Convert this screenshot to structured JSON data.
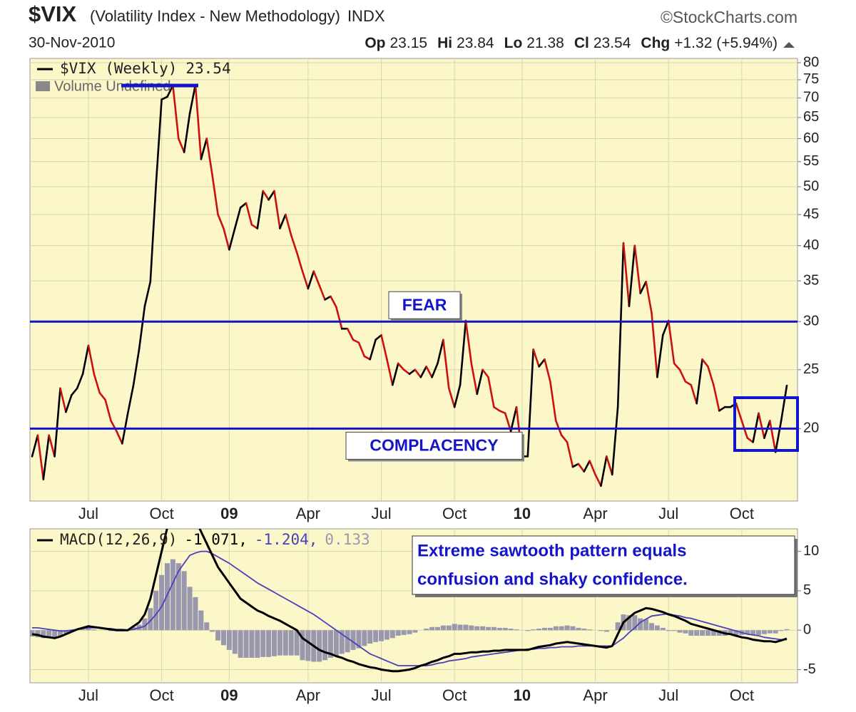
{
  "header": {
    "symbol": "$VIX",
    "name": "(Volatility Index - New Methodology)",
    "exchange": "INDX",
    "source": "©StockCharts.com",
    "date": "30-Nov-2010",
    "quote": [
      {
        "label": "Op",
        "value": "23.15"
      },
      {
        "label": "Hi",
        "value": "23.84"
      },
      {
        "label": "Lo",
        "value": "21.38"
      },
      {
        "label": "Cl",
        "value": "23.54"
      },
      {
        "label": "Chg",
        "value": "+1.32 (+5.94%)"
      }
    ]
  },
  "chart_data": [
    {
      "type": "line",
      "log_scale": true,
      "grid": true,
      "up_color": "#000000",
      "down_color": "#cc1010",
      "level_color": "#1414c8",
      "overlay_text": "Volume Undefined",
      "categories": [
        null,
        null,
        null,
        null,
        null,
        null,
        null,
        null,
        null,
        null,
        "Jul",
        null,
        null,
        null,
        null,
        null,
        null,
        null,
        null,
        null,
        null,
        null,
        null,
        "Oct",
        null,
        null,
        null,
        null,
        null,
        null,
        null,
        null,
        null,
        null,
        null,
        "09",
        null,
        null,
        null,
        null,
        null,
        null,
        null,
        null,
        null,
        null,
        null,
        null,
        null,
        "Apr",
        null,
        null,
        null,
        null,
        null,
        null,
        null,
        null,
        null,
        null,
        null,
        null,
        "Jul",
        null,
        null,
        null,
        null,
        null,
        null,
        null,
        null,
        null,
        null,
        null,
        null,
        "Oct",
        null,
        null,
        null,
        null,
        null,
        null,
        null,
        null,
        null,
        null,
        null,
        "10",
        null,
        null,
        null,
        null,
        null,
        null,
        null,
        null,
        null,
        null,
        null,
        null,
        "Apr",
        null,
        null,
        null,
        null,
        null,
        null,
        null,
        null,
        null,
        null,
        null,
        null,
        "Jul",
        null,
        null,
        null,
        null,
        null,
        null,
        null,
        null,
        null,
        null,
        null,
        null,
        "Oct",
        null,
        null,
        null,
        null,
        null,
        null,
        null,
        null
      ],
      "series": [
        {
          "name": "$VIX (Weekly)",
          "values": [
            18.0,
            19.5,
            16.5,
            19.5,
            18.0,
            23.3,
            21.3,
            22.7,
            23.3,
            24.6,
            27.4,
            24.6,
            22.9,
            22.3,
            20.6,
            19.8,
            18.9,
            21.2,
            23.6,
            27.0,
            31.8,
            34.9,
            50.4,
            69.6,
            70.3,
            73.4,
            60,
            57,
            66,
            73.6,
            55.5,
            60,
            52.2,
            45,
            42.7,
            39.4,
            42.7,
            46.2,
            47,
            43.3,
            42.7,
            49.2,
            47.6,
            49.2,
            42.7,
            45,
            41.6,
            39,
            36.3,
            34,
            36.3,
            34.4,
            32.6,
            33,
            31.7,
            29.2,
            29.2,
            28,
            27.7,
            26.3,
            26,
            28,
            28.5,
            26,
            23.6,
            25.6,
            25,
            24.6,
            25,
            24.3,
            25.3,
            24.3,
            25.6,
            28,
            23.3,
            21.7,
            23.6,
            30.1,
            25.6,
            22.8,
            25,
            24.3,
            21.7,
            21.4,
            21.2,
            19.8,
            21.7,
            18,
            18,
            27,
            25.3,
            26,
            23.9,
            20.6,
            19.5,
            19,
            17.3,
            17.5,
            17,
            17.7,
            16.8,
            16.1,
            18,
            16.8,
            21.7,
            40.4,
            31.8,
            40,
            33.4,
            34.9,
            31,
            24.3,
            28.5,
            30.1,
            25.6,
            25,
            23.9,
            23.6,
            22,
            26,
            25.3,
            23.6,
            21.4,
            21.7,
            21.7,
            22,
            20.6,
            19.3,
            19,
            21.2,
            19.3,
            20.6,
            18.3,
            20.6,
            23.54
          ]
        }
      ],
      "ylim": [
        15.2,
        81.3
      ],
      "yticks": [
        20,
        25,
        30,
        35,
        40,
        45,
        50,
        55,
        60,
        65,
        70,
        75,
        80
      ],
      "levels": [
        {
          "value": 30,
          "label": "FEAR"
        },
        {
          "value": 20,
          "label": "COMPLACENCY"
        }
      ]
    },
    {
      "type": "macd",
      "grid": true,
      "legend_values": [
        "-1.071,",
        "-1.204,",
        "0.133"
      ],
      "annotation": [
        "Extreme sawtooth pattern equals",
        "confusion and shaky confidence."
      ],
      "categories": [
        null,
        null,
        null,
        null,
        null,
        null,
        null,
        null,
        null,
        null,
        "Jul",
        null,
        null,
        null,
        null,
        null,
        null,
        null,
        null,
        null,
        null,
        null,
        null,
        "Oct",
        null,
        null,
        null,
        null,
        null,
        null,
        null,
        null,
        null,
        null,
        null,
        "09",
        null,
        null,
        null,
        null,
        null,
        null,
        null,
        null,
        null,
        null,
        null,
        null,
        null,
        "Apr",
        null,
        null,
        null,
        null,
        null,
        null,
        null,
        null,
        null,
        null,
        null,
        null,
        "Jul",
        null,
        null,
        null,
        null,
        null,
        null,
        null,
        null,
        null,
        null,
        null,
        null,
        "Oct",
        null,
        null,
        null,
        null,
        null,
        null,
        null,
        null,
        null,
        null,
        null,
        "10",
        null,
        null,
        null,
        null,
        null,
        null,
        null,
        null,
        null,
        null,
        null,
        null,
        "Apr",
        null,
        null,
        null,
        null,
        null,
        null,
        null,
        null,
        null,
        null,
        null,
        null,
        "Jul",
        null,
        null,
        null,
        null,
        null,
        null,
        null,
        null,
        null,
        null,
        null,
        null,
        "Oct",
        null,
        null,
        null,
        null,
        null,
        null,
        null,
        null
      ],
      "series": [
        {
          "name": "MACD(12,26,9)",
          "color": "#000000",
          "values": [
            -0.5,
            -0.6,
            -0.8,
            -0.9,
            -1.0,
            -0.8,
            -0.5,
            -0.2,
            0.1,
            0.3,
            0.5,
            0.4,
            0.3,
            0.2,
            0.1,
            0.0,
            0.0,
            0.0,
            0.5,
            1.0,
            2.0,
            4.0,
            7.0,
            10.0,
            13.0,
            15.0,
            16.0,
            16.0,
            15.0,
            14.0,
            12.5,
            11.0,
            9.5,
            8.0,
            7.0,
            6.0,
            5.0,
            4.0,
            3.5,
            3.0,
            2.5,
            2.2,
            1.8,
            1.5,
            1.2,
            0.8,
            0.4,
            0.0,
            -1.0,
            -1.5,
            -2.0,
            -2.5,
            -2.8,
            -3.0,
            -3.3,
            -3.5,
            -3.8,
            -4.0,
            -4.3,
            -4.5,
            -4.7,
            -4.8,
            -5.0,
            -5.1,
            -5.2,
            -5.2,
            -5.1,
            -5.0,
            -4.8,
            -4.5,
            -4.3,
            -4.0,
            -3.8,
            -3.5,
            -3.3,
            -3.0,
            -3.0,
            -2.9,
            -2.8,
            -2.8,
            -2.7,
            -2.7,
            -2.6,
            -2.6,
            -2.5,
            -2.5,
            -2.5,
            -2.5,
            -2.5,
            -2.3,
            -2.1,
            -2.0,
            -1.9,
            -1.7,
            -1.6,
            -1.5,
            -1.6,
            -1.7,
            -1.8,
            -1.9,
            -2.0,
            -2.1,
            -2.2,
            -2.0,
            -0.5,
            1.0,
            1.6,
            2.2,
            2.5,
            2.8,
            2.7,
            2.5,
            2.3,
            2.0,
            1.8,
            1.5,
            1.2,
            0.8,
            0.6,
            0.4,
            0.2,
            0.0,
            -0.2,
            -0.4,
            -0.5,
            -0.7,
            -0.9,
            -1.0,
            -1.2,
            -1.3,
            -1.4,
            -1.4,
            -1.5,
            -1.3,
            -1.071
          ]
        },
        {
          "color": "#4a40b8",
          "values": [
            0.3,
            0.3,
            0.2,
            0.1,
            0.0,
            -0.1,
            -0.1,
            0.0,
            0.1,
            0.2,
            0.3,
            0.3,
            0.3,
            0.2,
            0.2,
            0.1,
            0.1,
            0.0,
            0.1,
            0.3,
            0.5,
            1.2,
            2.0,
            3.0,
            4.5,
            6.0,
            7.5,
            8.5,
            9.5,
            9.8,
            10.0,
            10.0,
            9.7,
            9.3,
            8.9,
            8.5,
            8.0,
            7.5,
            7.0,
            6.5,
            6.0,
            5.6,
            5.2,
            4.8,
            4.4,
            4.0,
            3.6,
            3.2,
            2.8,
            2.4,
            2.0,
            1.5,
            1.0,
            0.5,
            0.0,
            -0.5,
            -1.0,
            -1.5,
            -2.0,
            -2.5,
            -3.0,
            -3.3,
            -3.6,
            -3.9,
            -4.2,
            -4.5,
            -4.5,
            -4.5,
            -4.5,
            -4.5,
            -4.5,
            -4.4,
            -4.2,
            -4.1,
            -3.9,
            -3.8,
            -3.7,
            -3.6,
            -3.4,
            -3.3,
            -3.2,
            -3.1,
            -3.0,
            -2.9,
            -2.8,
            -2.7,
            -2.6,
            -2.5,
            -2.4,
            -2.4,
            -2.3,
            -2.3,
            -2.2,
            -2.2,
            -2.1,
            -2.1,
            -2.1,
            -2.0,
            -2.0,
            -2.0,
            -2.0,
            -2.0,
            -2.0,
            -2.0,
            -1.5,
            -1.0,
            -0.3,
            0.3,
            1.0,
            1.4,
            1.8,
            1.9,
            2.0,
            2.1,
            1.9,
            1.8,
            1.6,
            1.5,
            1.3,
            1.1,
            0.9,
            0.7,
            0.5,
            0.3,
            0.1,
            -0.1,
            -0.3,
            -0.5,
            -0.6,
            -0.7,
            -0.9,
            -1.0,
            -1.1,
            -1.2,
            -1.204
          ]
        },
        {
          "color": "#9a98ae",
          "values": [
            -0.8,
            -0.9,
            -1.0,
            -1.0,
            -1.0,
            -0.7,
            -0.4,
            -0.2,
            0.0,
            0.1,
            0.2,
            0.1,
            0.0,
            0.0,
            -0.1,
            -0.1,
            -0.1,
            0.0,
            0.4,
            0.7,
            1.5,
            2.8,
            5.0,
            7.0,
            8.5,
            9.0,
            8.5,
            7.5,
            5.5,
            4.2,
            2.5,
            1.0,
            -0.2,
            -1.3,
            -1.9,
            -2.5,
            -3.0,
            -3.5,
            -3.5,
            -3.5,
            -3.5,
            -3.4,
            -3.4,
            -3.3,
            -3.2,
            -3.2,
            -3.2,
            -3.2,
            -3.8,
            -3.9,
            -4.0,
            -4.0,
            -3.8,
            -3.5,
            -3.3,
            -3.0,
            -2.8,
            -2.5,
            -2.3,
            -2.0,
            -1.7,
            -1.5,
            -1.4,
            -1.2,
            -1.0,
            -0.7,
            -0.6,
            -0.5,
            -0.3,
            0.0,
            0.2,
            0.4,
            0.4,
            0.6,
            0.6,
            0.8,
            0.7,
            0.7,
            0.6,
            0.5,
            0.5,
            0.4,
            0.4,
            0.3,
            0.3,
            0.2,
            0.1,
            0.0,
            -0.1,
            0.1,
            0.2,
            0.3,
            0.3,
            0.5,
            0.5,
            0.6,
            0.5,
            0.3,
            0.2,
            0.1,
            0.0,
            -0.1,
            -0.2,
            0.0,
            1.0,
            2.0,
            1.9,
            1.9,
            1.5,
            1.4,
            0.9,
            0.6,
            0.3,
            -0.1,
            -0.1,
            -0.3,
            -0.4,
            -0.7,
            -0.7,
            -0.7,
            -0.7,
            -0.7,
            -0.7,
            -0.7,
            -0.6,
            -0.6,
            -0.6,
            -0.5,
            -0.6,
            -0.6,
            -0.5,
            -0.4,
            -0.4,
            -0.1,
            0.133
          ]
        }
      ],
      "ylim": [
        -6.67,
        12.86
      ],
      "yticks": [
        -5,
        0,
        5,
        10
      ]
    }
  ]
}
